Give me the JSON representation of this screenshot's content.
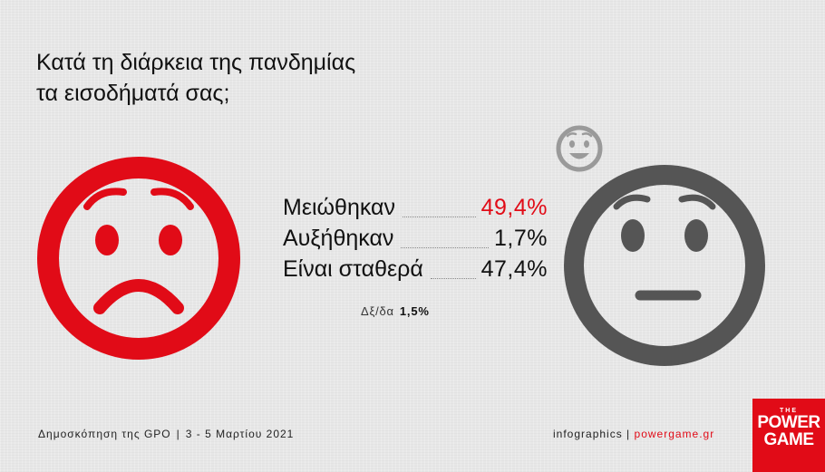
{
  "title": {
    "line1": "Κατά τη διάρκεια της πανδημίας",
    "line2": "τα εισοδήματά σας;"
  },
  "chart_data": {
    "type": "table",
    "title": "Κατά τη διάρκεια της πανδημίας τα εισοδήματά σας;",
    "categories": [
      "Μειώθηκαν",
      "Αυξήθηκαν",
      "Είναι σταθερά"
    ],
    "values": [
      49.4,
      1.7,
      47.4
    ],
    "value_labels": [
      "49,4%",
      "1,7%",
      "47,4%"
    ],
    "highlight_index": 0,
    "dont_know": {
      "label": "Δξ/δα",
      "value": 1.5,
      "value_label": "1,5%"
    }
  },
  "footer": {
    "source": "Δημοσκόπηση της GPO",
    "date": "3 - 5 Μαρτίου 2021",
    "credit": "infographics",
    "site": "powergame.gr"
  },
  "logo": {
    "the": "THE",
    "line1": "POWER",
    "line2": "GAME"
  },
  "icons": {
    "sad": "sad-face-icon",
    "neutral": "neutral-face-icon",
    "happy": "happy-face-icon"
  },
  "colors": {
    "accent": "#e10b17",
    "face_gray": "#555555",
    "background": "#e7e7e7"
  }
}
